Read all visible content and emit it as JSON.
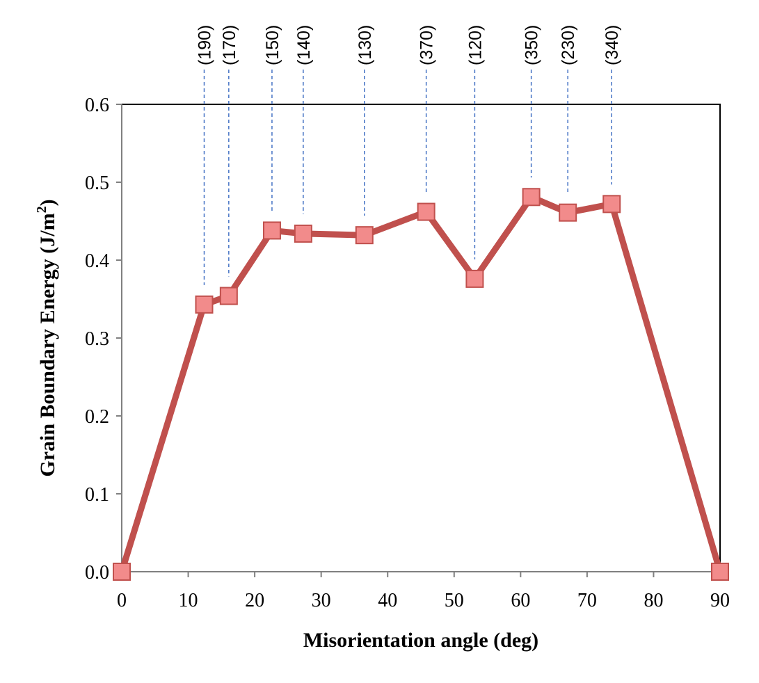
{
  "chart_data": {
    "type": "line",
    "title": "",
    "xlabel": "Misorientation angle (deg)",
    "ylabel_main": "Grain Boundary Energy (J/m",
    "ylabel_sup": "2",
    "ylabel_close": ")",
    "xlim": [
      0,
      90
    ],
    "ylim": [
      0,
      0.6
    ],
    "xticks": [
      "0",
      "10",
      "20",
      "30",
      "40",
      "50",
      "60",
      "70",
      "80",
      "90"
    ],
    "yticks": [
      "0.0",
      "0.1",
      "0.2",
      "0.3",
      "0.4",
      "0.5",
      "0.6"
    ],
    "grid": false,
    "legend": "none",
    "series": [
      {
        "x": [
          0,
          12.4,
          16.1,
          22.6,
          27.3,
          36.5,
          45.8,
          53.1,
          61.6,
          67.1,
          73.7,
          90
        ],
        "y": [
          0,
          0.343,
          0.354,
          0.438,
          0.434,
          0.432,
          0.462,
          0.376,
          0.481,
          0.461,
          0.472,
          0
        ]
      }
    ],
    "annotations": [
      {
        "label": "(190)",
        "x": 12.4
      },
      {
        "label": "(170)",
        "x": 16.1
      },
      {
        "label": "(150)",
        "x": 22.6
      },
      {
        "label": "(140)",
        "x": 27.3
      },
      {
        "label": "(130)",
        "x": 36.5
      },
      {
        "label": "(370)",
        "x": 45.8
      },
      {
        "label": "(120)",
        "x": 53.1
      },
      {
        "label": "(350)",
        "x": 61.6
      },
      {
        "label": "(230)",
        "x": 67.1
      },
      {
        "label": "(340)",
        "x": 73.7
      }
    ],
    "colors": {
      "line": "#c0504d",
      "marker_fill": "#f28b8b",
      "marker_edge": "#c0504d",
      "annotation_line": "#4472c4",
      "axis": "#808080",
      "frame": "#000000"
    }
  }
}
